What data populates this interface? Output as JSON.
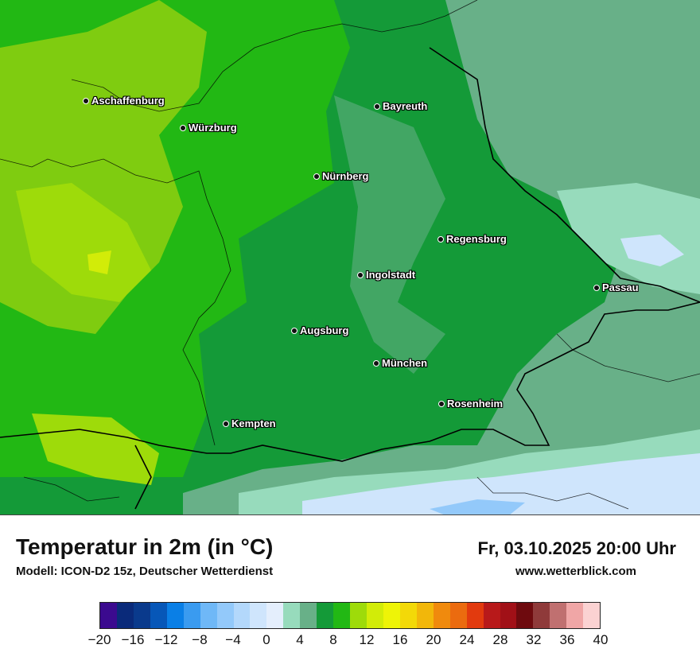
{
  "map": {
    "cities": [
      {
        "name": "Aschaffenburg"
      },
      {
        "name": "Würzburg"
      },
      {
        "name": "Bayreuth"
      },
      {
        "name": "Nürnberg"
      },
      {
        "name": "Regensburg"
      },
      {
        "name": "Ingolstadt"
      },
      {
        "name": "Passau"
      },
      {
        "name": "Augsburg"
      },
      {
        "name": "München"
      },
      {
        "name": "Rosenheim"
      },
      {
        "name": "Kempten"
      }
    ]
  },
  "footer": {
    "title": "Temperatur in 2m (in °C)",
    "model": "Modell: ICON-D2 15z, Deutscher Wetterdienst",
    "datetime": "Fr, 03.10.2025 20:00 Uhr",
    "site": "www.wetterblick.com"
  },
  "legend": {
    "colors": [
      "#3b0a8f",
      "#0a2a7a",
      "#0a3a8c",
      "#0757b8",
      "#0a7fe6",
      "#3a9bf0",
      "#6fb8f7",
      "#93c9fa",
      "#b3d8fb",
      "#cfe5fc",
      "#e4eefc",
      "#97dbbc",
      "#68b088",
      "#149a38",
      "#22b814",
      "#9edb0a",
      "#d2ec08",
      "#eef407",
      "#f3d908",
      "#f2b70a",
      "#f08a0d",
      "#eb6b0f",
      "#e23a0e",
      "#b8191a",
      "#a11017",
      "#6e0a0e",
      "#8f3a3a",
      "#c07070",
      "#f0a6a6",
      "#fbd2d2"
    ],
    "ticks": [
      "−20",
      "−16",
      "−12",
      "−8",
      "−4",
      "0",
      "4",
      "8",
      "12",
      "16",
      "20",
      "24",
      "28",
      "32",
      "36",
      "40"
    ]
  }
}
